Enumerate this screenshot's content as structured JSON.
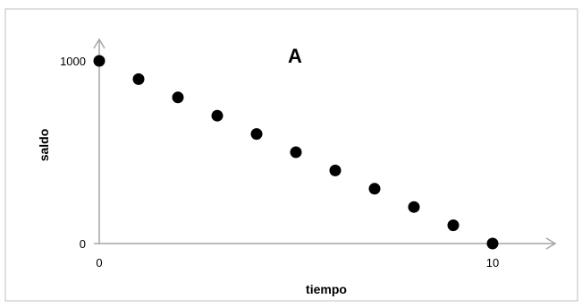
{
  "chart_data": {
    "type": "scatter",
    "title": "A",
    "xlabel": "tiempo",
    "ylabel": "saldo",
    "x": [
      0,
      1,
      2,
      3,
      4,
      5,
      6,
      7,
      8,
      9,
      10
    ],
    "y": [
      1000,
      900,
      800,
      700,
      600,
      500,
      400,
      300,
      200,
      100,
      0
    ],
    "xlim": [
      0,
      11.5
    ],
    "ylim": [
      0,
      1090
    ],
    "x_ticks": [
      "0",
      "10"
    ],
    "y_ticks": [
      "0",
      "1000"
    ],
    "grid": false,
    "marker_color": "#000000",
    "axis_color": "#a6a6a6"
  }
}
